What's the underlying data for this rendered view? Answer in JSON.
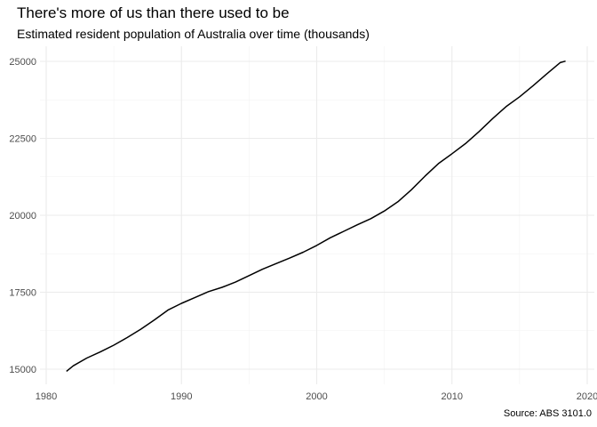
{
  "chart_data": {
    "type": "line",
    "title": "There's more of us than there used to be",
    "subtitle": "Estimated resident population of Australia over time (thousands)",
    "caption": "Source: ABS 3101.0",
    "xlabel": "",
    "ylabel": "",
    "xlim": [
      1980,
      2020
    ],
    "ylim": [
      15000,
      25000
    ],
    "x_ticks": [
      1980,
      1990,
      2000,
      2010,
      2020
    ],
    "y_ticks": [
      15000,
      17500,
      20000,
      22500,
      25000
    ],
    "x_tick_labels": [
      "1980",
      "1990",
      "2000",
      "2010",
      "2020"
    ],
    "y_tick_labels": [
      "15000",
      "17500",
      "20000",
      "22500",
      "25000"
    ],
    "grid": true,
    "legend": "none",
    "line_color": "#000000",
    "series": [
      {
        "x": [
          1981.5,
          1982,
          1983,
          1984,
          1985,
          1986,
          1987,
          1988,
          1989,
          1990,
          1991,
          1992,
          1993,
          1994,
          1995,
          1996,
          1997,
          1998,
          1999,
          2000,
          2001,
          2002,
          2003,
          2004,
          2005,
          2006,
          2007,
          2008,
          2009,
          2010,
          2011,
          2012,
          2013,
          2014,
          2015,
          2016,
          2017,
          2018,
          2018.4
        ],
        "y": [
          14930,
          15110,
          15360,
          15560,
          15780,
          16030,
          16300,
          16600,
          16920,
          17140,
          17330,
          17520,
          17660,
          17830,
          18040,
          18250,
          18430,
          18610,
          18800,
          19020,
          19270,
          19480,
          19690,
          19890,
          20140,
          20440,
          20830,
          21270,
          21680,
          22000,
          22330,
          22720,
          23140,
          23530,
          23850,
          24210,
          24590,
          24960,
          25010
        ]
      }
    ]
  }
}
